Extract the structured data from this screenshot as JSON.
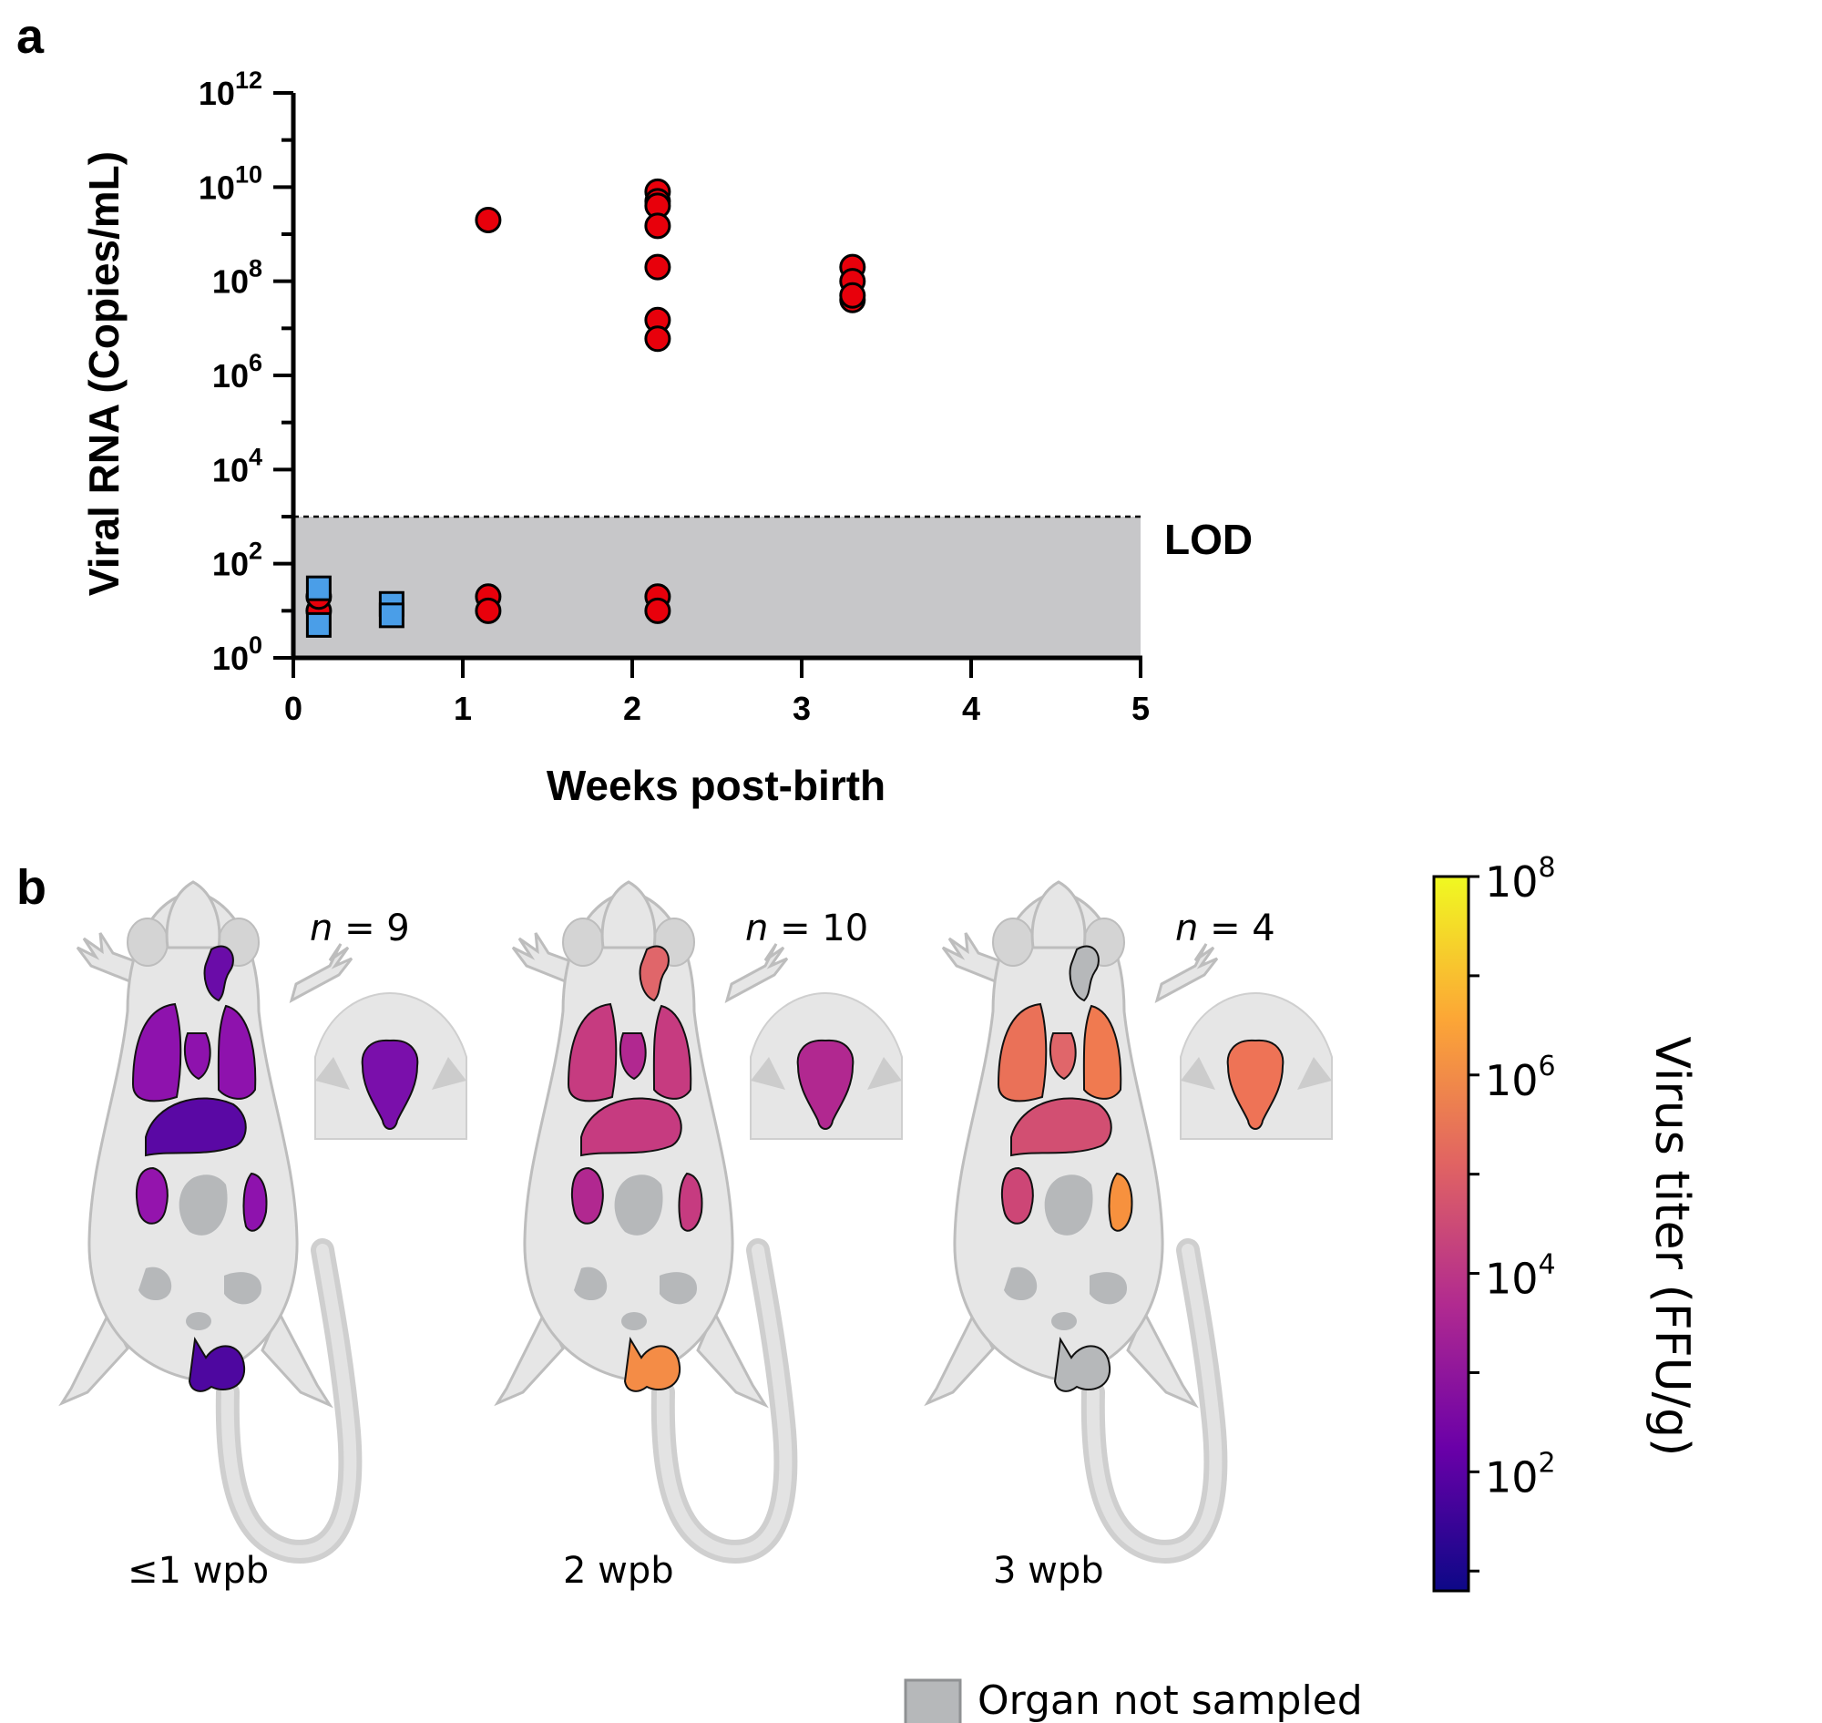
{
  "panels": {
    "a": "a",
    "b": "b"
  },
  "colors": {
    "red_marker": "#e8000b",
    "blue_marker": "#4a9ee8",
    "lod_region": "#c7c7c9",
    "organ_not_sampled": "#b6b8ba",
    "mouse_body": "#e6e6e6"
  },
  "chart_data": {
    "type": "scatter",
    "title": "",
    "xlabel": "Weeks post-birth",
    "ylabel": "Viral RNA (Copies/mL)",
    "xlim": [
      0,
      5
    ],
    "ylim_log10": [
      0,
      12
    ],
    "yscale": "log",
    "x_ticks": [
      "0",
      "1",
      "2",
      "3",
      "4",
      "5"
    ],
    "y_ticks": [
      {
        "base": "10",
        "exp": "0",
        "value": 0
      },
      {
        "base": "10",
        "exp": "2",
        "value": 2
      },
      {
        "base": "10",
        "exp": "4",
        "value": 4
      },
      {
        "base": "10",
        "exp": "6",
        "value": 6
      },
      {
        "base": "10",
        "exp": "8",
        "value": 8
      },
      {
        "base": "10",
        "exp": "10",
        "value": 10
      },
      {
        "base": "10",
        "exp": "12",
        "value": 12
      }
    ],
    "lod": {
      "label": "LOD",
      "value_log10": 3.0
    },
    "series": [
      {
        "marker": "circle",
        "color": "#e8000b",
        "points": [
          {
            "x": 0.15,
            "y": 10
          },
          {
            "x": 0.15,
            "y": 20
          },
          {
            "x": 1.15,
            "y": 2000000000
          },
          {
            "x": 1.15,
            "y": 20
          },
          {
            "x": 1.15,
            "y": 10
          },
          {
            "x": 2.15,
            "y": 8000000000
          },
          {
            "x": 2.15,
            "y": 5000000000
          },
          {
            "x": 2.15,
            "y": 4000000000
          },
          {
            "x": 2.15,
            "y": 1500000000
          },
          {
            "x": 2.15,
            "y": 200000000
          },
          {
            "x": 2.15,
            "y": 15000000
          },
          {
            "x": 2.15,
            "y": 6000000
          },
          {
            "x": 2.15,
            "y": 20
          },
          {
            "x": 2.15,
            "y": 10
          },
          {
            "x": 3.3,
            "y": 200000000
          },
          {
            "x": 3.3,
            "y": 100000000
          },
          {
            "x": 3.3,
            "y": 40000000
          },
          {
            "x": 3.3,
            "y": 50000000
          }
        ]
      },
      {
        "marker": "square",
        "color": "#4a9ee8",
        "points": [
          {
            "x": 0.15,
            "y": 30
          },
          {
            "x": 0.15,
            "y": 5
          },
          {
            "x": 0.58,
            "y": 14
          },
          {
            "x": 0.58,
            "y": 8
          }
        ]
      }
    ]
  },
  "mice": [
    {
      "n_prefix": "n",
      "n_text": " = 9",
      "label": "≤1 wpb",
      "organs": {
        "salivary": "#6a0ca8",
        "lung_left": "#8e12ad",
        "lung_right": "#8e12ad",
        "heart": "#8e12ad",
        "liver": "#5a08a4",
        "kidney": "#9414ad",
        "spleen": "#8e12ad",
        "stomach": "#b6b8ba",
        "intestine_a": "#b6b8ba",
        "intestine_b": "#b6b8ba",
        "bladder": "#b6b8ba",
        "testis": "#4e07a0",
        "brain": "#7a0fab"
      }
    },
    {
      "n_prefix": "n",
      "n_text": " = 10",
      "label": "2 wpb",
      "organs": {
        "salivary": "#e0666a",
        "lung_left": "#c63b80",
        "lung_right": "#c63b80",
        "heart": "#b12890",
        "liver": "#c63b80",
        "kidney": "#b12890",
        "spleen": "#c63b80",
        "stomach": "#b6b8ba",
        "intestine_a": "#b6b8ba",
        "intestine_b": "#b6b8ba",
        "bladder": "#b6b8ba",
        "testis": "#f48c46",
        "brain": "#b12890"
      }
    },
    {
      "n_prefix": "n",
      "n_text": " = 4",
      "label": "3 wpb",
      "organs": {
        "salivary": "#b6b8ba",
        "lung_left": "#ea7158",
        "lung_right": "#f07a50",
        "heart": "#e0666a",
        "liver": "#d24f72",
        "kidney": "#cd4676",
        "spleen": "#f7913e",
        "stomach": "#b6b8ba",
        "intestine_a": "#b6b8ba",
        "intestine_b": "#b6b8ba",
        "bladder": "#b6b8ba",
        "testis": "#b6b8ba",
        "brain": "#ee7356"
      }
    }
  ],
  "colorbar": {
    "title": "Virus titer (FFU/g)",
    "range_log10": [
      0.8,
      8
    ],
    "ticks": [
      {
        "base": "10",
        "exp": "8",
        "value": 8
      },
      {
        "base": "10",
        "exp": "6",
        "value": 6
      },
      {
        "base": "10",
        "exp": "4",
        "value": 4
      },
      {
        "base": "10",
        "exp": "2",
        "value": 2
      }
    ],
    "stops": [
      "#0d0887",
      "#6a00a8",
      "#b12a90",
      "#e16462",
      "#fca636",
      "#f0f921"
    ]
  },
  "legend": {
    "organ_not_sampled": "Organ not sampled"
  }
}
